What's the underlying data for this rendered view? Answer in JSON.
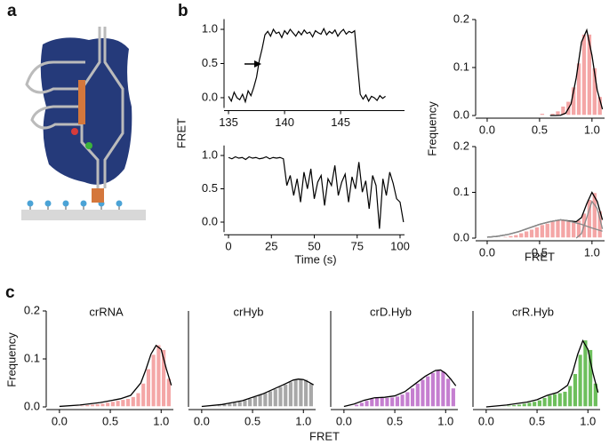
{
  "panel_labels": [
    "a",
    "b",
    "c"
  ],
  "panel_c_xlabel": "FRET",
  "chart_data": [
    {
      "type": "line",
      "ylabel": "FRET",
      "color": "#000000",
      "x": [
        135,
        135.25,
        135.5,
        135.75,
        136,
        136.25,
        136.5,
        136.75,
        137,
        137.25,
        137.5,
        137.75,
        138,
        138.25,
        138.5,
        138.75,
        139,
        139.25,
        139.5,
        139.75,
        140,
        140.25,
        140.5,
        140.75,
        141,
        141.25,
        141.5,
        141.75,
        142,
        142.25,
        142.5,
        142.75,
        143,
        143.25,
        143.5,
        143.75,
        144,
        144.25,
        144.5,
        144.75,
        145,
        145.25,
        145.5,
        145.75,
        146,
        146.25,
        146.5,
        146.75,
        147,
        147.25,
        147.5,
        147.75,
        148,
        148.25,
        148.5,
        148.75,
        149
      ],
      "values": [
        0.02,
        -0.05,
        0.08,
        0.0,
        -0.03,
        0.05,
        -0.06,
        0.1,
        0.03,
        0.15,
        0.3,
        0.55,
        0.72,
        0.92,
        0.97,
        0.9,
        1.0,
        0.94,
        0.96,
        0.88,
        0.98,
        0.93,
        1.0,
        0.95,
        0.9,
        0.97,
        0.92,
        0.99,
        0.94,
        0.96,
        0.89,
        0.98,
        0.95,
        0.93,
        1.01,
        0.92,
        0.97,
        0.94,
        0.99,
        0.9,
        0.96,
        1.0,
        0.93,
        0.97,
        0.95,
        0.98,
        0.5,
        0.05,
        -0.02,
        0.04,
        -0.05,
        0.02,
        0.0,
        -0.04,
        0.03,
        -0.01,
        0.02
      ],
      "xlim": [
        134.6,
        150.7
      ],
      "xticks": [
        135,
        140,
        145
      ],
      "ylim": [
        -0.15,
        1.15
      ],
      "yticks": [
        {
          "value": 0,
          "label": "0.0"
        },
        {
          "value": 0.5,
          "label": "0.5"
        },
        {
          "value": 1,
          "label": "1.0"
        }
      ]
    },
    {
      "type": "line",
      "xlabel": "Time (s)",
      "color": "#000000",
      "x": [
        0,
        2,
        4,
        6,
        8,
        10,
        12,
        14,
        16,
        18,
        20,
        22,
        24,
        26,
        28,
        30,
        32,
        34,
        36,
        38,
        40,
        42,
        44,
        46,
        48,
        50,
        52,
        54,
        56,
        58,
        60,
        62,
        64,
        66,
        68,
        70,
        72,
        74,
        76,
        78,
        80,
        82,
        84,
        86,
        88,
        90,
        92,
        94,
        96,
        98,
        100,
        102
      ],
      "values": [
        0.97,
        0.95,
        0.98,
        0.96,
        0.97,
        0.94,
        0.98,
        0.96,
        0.97,
        0.95,
        0.96,
        0.98,
        0.95,
        0.97,
        0.96,
        0.97,
        0.95,
        0.55,
        0.7,
        0.4,
        0.65,
        0.3,
        0.75,
        0.5,
        0.8,
        0.35,
        0.6,
        0.7,
        0.25,
        0.65,
        0.55,
        0.85,
        0.4,
        0.6,
        0.72,
        0.3,
        0.68,
        0.5,
        0.9,
        0.45,
        0.62,
        0.2,
        0.7,
        0.55,
        -0.1,
        0.65,
        0.4,
        0.75,
        0.58,
        0.35,
        0.3,
        0.0
      ],
      "xlim": [
        -2.6,
        102.6
      ],
      "xticks": [
        0,
        25,
        50,
        75,
        100
      ],
      "ylim": [
        -0.15,
        1.15
      ],
      "yticks": [
        {
          "value": 0,
          "label": "0.0"
        },
        {
          "value": 0.5,
          "label": "0.5"
        },
        {
          "value": 1,
          "label": "1.0"
        }
      ]
    },
    {
      "type": "histogram",
      "ylabel": "Frequency",
      "color": "#f4a6a6",
      "bins": [
        0,
        0.05,
        0.1,
        0.15,
        0.2,
        0.25,
        0.3,
        0.35,
        0.4,
        0.45,
        0.5,
        0.55,
        0.6,
        0.65,
        0.7,
        0.75,
        0.8,
        0.85,
        0.9,
        0.95,
        1.0,
        1.05,
        1.1
      ],
      "values": [
        0,
        0,
        0,
        0,
        0,
        0,
        0,
        0,
        0,
        0,
        0.005,
        0,
        0.005,
        0.01,
        0.02,
        0.03,
        0.06,
        0.11,
        0.17,
        0.17,
        0.1,
        0.04
      ],
      "curves": [
        {
          "color": "#000000",
          "x": [
            0.6,
            0.65,
            0.7,
            0.75,
            0.8,
            0.85,
            0.9,
            0.95,
            1.0,
            1.05,
            1.1
          ],
          "values": [
            0,
            0,
            0.0005,
            0.005,
            0.024,
            0.079,
            0.153,
            0.178,
            0.125,
            0.053,
            0.013
          ]
        }
      ],
      "xlim": [
        -0.11,
        1.12
      ],
      "xticks": [
        {
          "value": 0,
          "label": "0.0"
        },
        {
          "value": 0.5,
          "label": "0.5"
        },
        {
          "value": 1,
          "label": "1.0"
        }
      ],
      "ylim": [
        0,
        0.2
      ],
      "yticks": [
        {
          "value": 0,
          "label": "0.0"
        },
        {
          "value": 0.1,
          "label": "0.1"
        },
        {
          "value": 0.2,
          "label": "0.2"
        }
      ]
    },
    {
      "type": "histogram",
      "xlabel": "FRET",
      "color": "#f4a6a6",
      "bins": [
        0,
        0.05,
        0.1,
        0.15,
        0.2,
        0.25,
        0.3,
        0.35,
        0.4,
        0.45,
        0.5,
        0.55,
        0.6,
        0.65,
        0.7,
        0.75,
        0.8,
        0.85,
        0.9,
        0.95,
        1.0,
        1.05,
        1.1
      ],
      "values": [
        0,
        0.002,
        0.003,
        0.004,
        0.006,
        0.008,
        0.012,
        0.016,
        0.02,
        0.025,
        0.03,
        0.033,
        0.037,
        0.04,
        0.04,
        0.038,
        0.035,
        0.04,
        0.055,
        0.085,
        0.1,
        0.06
      ],
      "curves": [
        {
          "color": "#000000",
          "x": [
            0,
            0.1,
            0.2,
            0.3,
            0.4,
            0.5,
            0.6,
            0.7,
            0.8,
            0.85,
            0.9,
            0.95,
            1.0,
            1.05,
            1.1
          ],
          "values": [
            0.002,
            0.004,
            0.008,
            0.014,
            0.022,
            0.03,
            0.036,
            0.04,
            0.037,
            0.036,
            0.045,
            0.075,
            0.1,
            0.08,
            0.04
          ]
        },
        {
          "color": "#8a8a8a",
          "x": [
            0.85,
            0.9,
            0.95,
            1.0,
            1.05,
            1.1
          ],
          "values": [
            0,
            0.01,
            0.045,
            0.08,
            0.065,
            0.02
          ]
        },
        {
          "color": "#8a8a8a",
          "x": [
            0,
            0.1,
            0.2,
            0.3,
            0.4,
            0.5,
            0.6,
            0.7,
            0.8,
            0.9,
            1.0,
            1.1
          ],
          "values": [
            0.002,
            0.004,
            0.008,
            0.014,
            0.022,
            0.03,
            0.036,
            0.04,
            0.036,
            0.03,
            0.022,
            0.015
          ]
        }
      ],
      "xlim": [
        -0.11,
        1.12
      ],
      "xticks": [
        {
          "value": 0,
          "label": "0.0"
        },
        {
          "value": 0.5,
          "label": "0.5"
        },
        {
          "value": 1,
          "label": "1.0"
        }
      ],
      "ylim": [
        0,
        0.2
      ],
      "yticks": [
        {
          "value": 0,
          "label": "0.0"
        },
        {
          "value": 0.1,
          "label": "0.1"
        },
        {
          "value": 0.2,
          "label": "0.2"
        }
      ]
    },
    {
      "type": "histogram",
      "title": "crRNA",
      "ylabel": "Frequency",
      "color": "#f4a6a6",
      "bins": [
        0,
        0.05,
        0.1,
        0.15,
        0.2,
        0.25,
        0.3,
        0.35,
        0.4,
        0.45,
        0.5,
        0.55,
        0.6,
        0.65,
        0.7,
        0.75,
        0.8,
        0.85,
        0.9,
        0.95,
        1.0,
        1.05,
        1.1
      ],
      "values": [
        0,
        0.001,
        0.002,
        0.003,
        0.004,
        0.005,
        0.006,
        0.007,
        0.008,
        0.01,
        0.012,
        0.014,
        0.016,
        0.018,
        0.022,
        0.03,
        0.05,
        0.08,
        0.11,
        0.13,
        0.12,
        0.06
      ],
      "curves": [
        {
          "color": "#000000",
          "x": [
            0,
            0.2,
            0.4,
            0.5,
            0.6,
            0.7,
            0.8,
            0.85,
            0.9,
            0.95,
            1.0,
            1.05,
            1.1
          ],
          "values": [
            0.001,
            0.004,
            0.009,
            0.013,
            0.017,
            0.024,
            0.05,
            0.078,
            0.11,
            0.128,
            0.12,
            0.08,
            0.045
          ]
        }
      ],
      "xlim": [
        -0.13,
        1.12
      ],
      "xticks": [
        {
          "value": 0,
          "label": "0.0"
        },
        {
          "value": 0.5,
          "label": "0.5"
        },
        {
          "value": 1,
          "label": "1.0"
        }
      ],
      "ylim": [
        0,
        0.2
      ],
      "yticks": [
        {
          "value": 0,
          "label": "0.0"
        },
        {
          "value": 0.1,
          "label": "0.1"
        },
        {
          "value": 0.2,
          "label": "0.2"
        }
      ]
    },
    {
      "type": "histogram",
      "title": "crHyb",
      "color": "#a8a8a8",
      "bins": [
        0,
        0.05,
        0.1,
        0.15,
        0.2,
        0.25,
        0.3,
        0.35,
        0.4,
        0.45,
        0.5,
        0.55,
        0.6,
        0.65,
        0.7,
        0.75,
        0.8,
        0.85,
        0.9,
        0.95,
        1.0,
        1.05,
        1.1
      ],
      "values": [
        0.001,
        0.002,
        0.003,
        0.004,
        0.006,
        0.008,
        0.01,
        0.012,
        0.015,
        0.018,
        0.022,
        0.026,
        0.03,
        0.034,
        0.038,
        0.043,
        0.048,
        0.053,
        0.058,
        0.06,
        0.058,
        0.05
      ],
      "curves": [
        {
          "color": "#000000",
          "x": [
            0,
            0.2,
            0.4,
            0.6,
            0.8,
            0.9,
            0.95,
            1.0,
            1.05,
            1.1
          ],
          "values": [
            0.001,
            0.005,
            0.013,
            0.027,
            0.046,
            0.056,
            0.058,
            0.057,
            0.052,
            0.046
          ]
        }
      ],
      "xlim": [
        -0.13,
        1.12
      ],
      "xticks": [
        {
          "value": 0,
          "label": "0.0"
        },
        {
          "value": 0.5,
          "label": "0.5"
        },
        {
          "value": 1,
          "label": "1.0"
        }
      ],
      "ylim": [
        0,
        0.2
      ]
    },
    {
      "type": "histogram",
      "title": "crD.Hyb",
      "color": "#c57fd0",
      "bins": [
        0,
        0.05,
        0.1,
        0.15,
        0.2,
        0.25,
        0.3,
        0.35,
        0.4,
        0.45,
        0.5,
        0.55,
        0.6,
        0.65,
        0.7,
        0.75,
        0.8,
        0.85,
        0.9,
        0.95,
        1.0,
        1.05,
        1.1
      ],
      "values": [
        0.001,
        0.003,
        0.006,
        0.01,
        0.014,
        0.018,
        0.02,
        0.02,
        0.02,
        0.021,
        0.023,
        0.027,
        0.032,
        0.04,
        0.05,
        0.058,
        0.065,
        0.072,
        0.078,
        0.075,
        0.06,
        0.04
      ],
      "curves": [
        {
          "color": "#000000",
          "x": [
            0,
            0.1,
            0.2,
            0.3,
            0.4,
            0.5,
            0.6,
            0.7,
            0.8,
            0.9,
            0.95,
            1.0,
            1.05,
            1.1
          ],
          "values": [
            0.001,
            0.006,
            0.014,
            0.019,
            0.02,
            0.023,
            0.032,
            0.048,
            0.064,
            0.076,
            0.077,
            0.07,
            0.058,
            0.044
          ]
        }
      ],
      "xlim": [
        -0.13,
        1.12
      ],
      "xticks": [
        {
          "value": 0,
          "label": "0.0"
        },
        {
          "value": 0.5,
          "label": "0.5"
        },
        {
          "value": 1,
          "label": "1.0"
        }
      ],
      "ylim": [
        0,
        0.2
      ]
    },
    {
      "type": "histogram",
      "title": "crR.Hyb",
      "color": "#6dbf5c",
      "bins": [
        0,
        0.05,
        0.1,
        0.15,
        0.2,
        0.25,
        0.3,
        0.35,
        0.4,
        0.45,
        0.5,
        0.55,
        0.6,
        0.65,
        0.7,
        0.75,
        0.8,
        0.85,
        0.9,
        0.95,
        1.0,
        1.05,
        1.1
      ],
      "values": [
        0,
        0.001,
        0.002,
        0.003,
        0.004,
        0.005,
        0.006,
        0.008,
        0.01,
        0.012,
        0.015,
        0.02,
        0.025,
        0.028,
        0.03,
        0.033,
        0.045,
        0.07,
        0.11,
        0.14,
        0.12,
        0.05
      ],
      "curves": [
        {
          "color": "#000000",
          "x": [
            0,
            0.2,
            0.4,
            0.5,
            0.6,
            0.7,
            0.8,
            0.85,
            0.9,
            0.95,
            1.0,
            1.05,
            1.1
          ],
          "values": [
            0,
            0.004,
            0.01,
            0.015,
            0.024,
            0.03,
            0.045,
            0.072,
            0.11,
            0.138,
            0.12,
            0.07,
            0.03
          ]
        }
      ],
      "xlim": [
        -0.13,
        1.12
      ],
      "xticks": [
        {
          "value": 0,
          "label": "0.0"
        },
        {
          "value": 0.5,
          "label": "0.5"
        },
        {
          "value": 1,
          "label": "1.0"
        }
      ],
      "ylim": [
        0,
        0.2
      ]
    }
  ]
}
